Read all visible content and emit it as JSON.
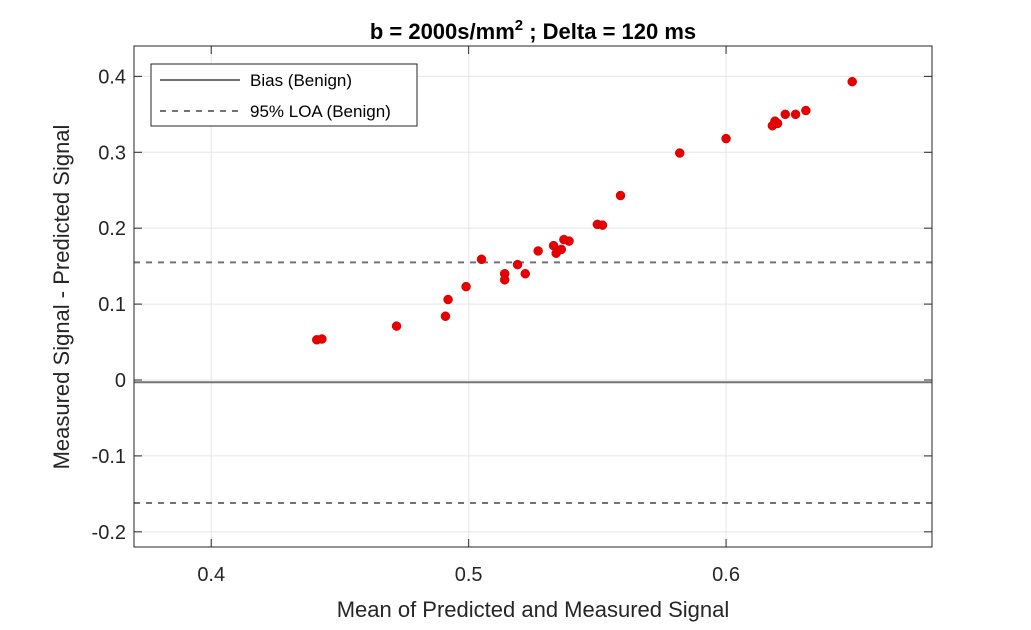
{
  "chart_data": {
    "type": "scatter",
    "title": {
      "main": "b = 2000s/mm",
      "superscript": "2",
      "suffix": " ; Delta = 120 ms"
    },
    "xlabel": "Mean of Predicted and Measured Signal",
    "ylabel": "Measured Signal - Predicted Signal",
    "xlim": [
      0.37,
      0.68
    ],
    "ylim": [
      -0.22,
      0.44
    ],
    "xticks": [
      0.4,
      0.5,
      0.6
    ],
    "xtick_labels": [
      "0.4",
      "0.5",
      "0.6"
    ],
    "yticks": [
      -0.2,
      -0.1,
      0,
      0.1,
      0.2,
      0.3,
      0.4
    ],
    "ytick_labels": [
      "-0.2",
      "-0.1",
      "0",
      "0.1",
      "0.2",
      "0.3",
      "0.4"
    ],
    "grid": true,
    "legend_position": "top-left",
    "legend": [
      {
        "label": "Bias (Benign)",
        "style": "solid"
      },
      {
        "label": "95% LOA (Benign)",
        "style": "dashed"
      }
    ],
    "bias": -0.003,
    "loa_upper": 0.155,
    "loa_lower": -0.162,
    "point_color": "#e60000",
    "line_color": "#737373",
    "points": [
      {
        "x": 0.441,
        "y": 0.053
      },
      {
        "x": 0.443,
        "y": 0.054
      },
      {
        "x": 0.472,
        "y": 0.071
      },
      {
        "x": 0.491,
        "y": 0.084
      },
      {
        "x": 0.492,
        "y": 0.106
      },
      {
        "x": 0.499,
        "y": 0.123
      },
      {
        "x": 0.505,
        "y": 0.159
      },
      {
        "x": 0.514,
        "y": 0.14
      },
      {
        "x": 0.514,
        "y": 0.132
      },
      {
        "x": 0.519,
        "y": 0.152
      },
      {
        "x": 0.522,
        "y": 0.14
      },
      {
        "x": 0.527,
        "y": 0.17
      },
      {
        "x": 0.533,
        "y": 0.177
      },
      {
        "x": 0.534,
        "y": 0.167
      },
      {
        "x": 0.536,
        "y": 0.172
      },
      {
        "x": 0.537,
        "y": 0.185
      },
      {
        "x": 0.539,
        "y": 0.183
      },
      {
        "x": 0.55,
        "y": 0.205
      },
      {
        "x": 0.552,
        "y": 0.204
      },
      {
        "x": 0.559,
        "y": 0.243
      },
      {
        "x": 0.582,
        "y": 0.299
      },
      {
        "x": 0.6,
        "y": 0.318
      },
      {
        "x": 0.618,
        "y": 0.335
      },
      {
        "x": 0.619,
        "y": 0.338
      },
      {
        "x": 0.619,
        "y": 0.341
      },
      {
        "x": 0.62,
        "y": 0.338
      },
      {
        "x": 0.623,
        "y": 0.35
      },
      {
        "x": 0.627,
        "y": 0.35
      },
      {
        "x": 0.631,
        "y": 0.355
      },
      {
        "x": 0.649,
        "y": 0.393
      }
    ]
  }
}
